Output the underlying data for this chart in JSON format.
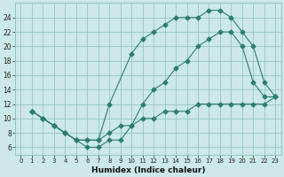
{
  "xlabel": "Humidex (Indice chaleur)",
  "bg_color": "#cce8e8",
  "grid_color": "#8bbfbf",
  "line_color": "#2e7d6e",
  "xlim": [
    -0.5,
    23.5
  ],
  "ylim": [
    5.0,
    26.0
  ],
  "xticks": [
    0,
    1,
    2,
    3,
    4,
    5,
    6,
    7,
    8,
    9,
    10,
    11,
    12,
    13,
    14,
    15,
    16,
    17,
    18,
    19,
    20,
    21,
    22,
    23
  ],
  "yticks": [
    6,
    8,
    10,
    12,
    14,
    16,
    18,
    20,
    22,
    24
  ],
  "line1_x": [
    1,
    2,
    3,
    4,
    5,
    6,
    7,
    8,
    9,
    10,
    11,
    12,
    13,
    14,
    15,
    16,
    17,
    18,
    19,
    20,
    21,
    22,
    23
  ],
  "line1_y": [
    11,
    10,
    9,
    8,
    7,
    7,
    7,
    8,
    9,
    9,
    10,
    10,
    11,
    11,
    11,
    12,
    12,
    12,
    12,
    12,
    12,
    12,
    13
  ],
  "line2_x": [
    1,
    2,
    3,
    4,
    5,
    6,
    7,
    8,
    10,
    11,
    12,
    13,
    14,
    15,
    16,
    17,
    18,
    19,
    20,
    21,
    22,
    23
  ],
  "line2_y": [
    11,
    10,
    9,
    8,
    7,
    7,
    7,
    12,
    19,
    21,
    22,
    23,
    24,
    24,
    24,
    25,
    25,
    24,
    22,
    20,
    15,
    13
  ],
  "line3_x": [
    1,
    2,
    3,
    4,
    5,
    6,
    7,
    8,
    9,
    10,
    11,
    12,
    13,
    14,
    15,
    16,
    17,
    18,
    19,
    20,
    21,
    22,
    23
  ],
  "line3_y": [
    11,
    10,
    9,
    8,
    7,
    6,
    6,
    7,
    7,
    9,
    12,
    14,
    15,
    17,
    18,
    20,
    21,
    22,
    22,
    20,
    15,
    13,
    13
  ]
}
